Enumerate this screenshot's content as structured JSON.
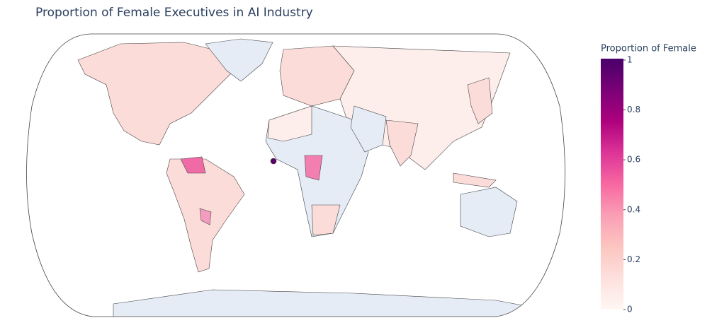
{
  "chart_data": {
    "type": "choropleth",
    "title": "Proportion of Female Executives in AI Industry",
    "colorbar_title": "Proportion of Female",
    "zlim": [
      0,
      1
    ],
    "zticks": [
      0,
      0.2,
      0.4,
      0.6,
      0.8,
      1
    ],
    "colorscale": [
      "#fff7f3",
      "#fde0dd",
      "#fcc5c0",
      "#fa9fb5",
      "#f768a1",
      "#dd3497",
      "#ae017e",
      "#7a0177",
      "#49006a"
    ]
  }
}
